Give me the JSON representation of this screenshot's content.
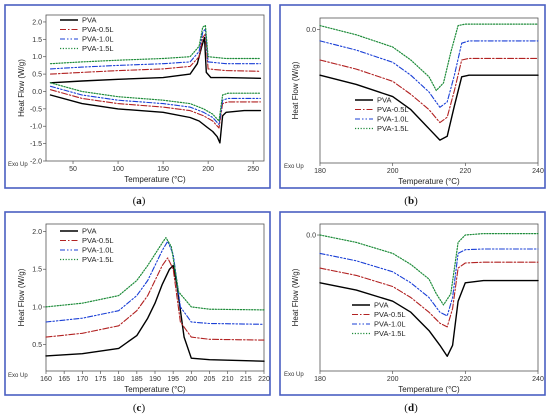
{
  "figure": {
    "colors": {
      "frame": "#4a5fc1",
      "PVA": "#000000",
      "PVA-0.5L": "#b22222",
      "PVA-1.0L": "#1a3fd6",
      "PVA-1.5L": "#1e8c3a"
    },
    "panels": [
      {
        "id": "a",
        "caption_open": "(",
        "caption_letter": "a",
        "caption_close": ")",
        "ylabel": "Heat Flow (W/g)",
        "xlabel": "Temperature (°C)",
        "exo_label": "Exo Up",
        "legend_position": "top-left",
        "legend": [
          "PVA",
          "PVA-0.5L",
          "PVA-1.0L",
          "PVA-1.5L"
        ]
      },
      {
        "id": "b",
        "caption_open": "(",
        "caption_letter": "b",
        "caption_close": ")",
        "ylabel": "Heat Flow (W/g)",
        "xlabel": "Temperature (°C)",
        "exo_label": "Exo Up",
        "legend_position": "bottom-center",
        "legend": [
          "PVA",
          "PVA-0.5L",
          "PVA-1.0L",
          "PVA-1.5L"
        ]
      },
      {
        "id": "c",
        "caption_open": "(",
        "caption_letter": "c",
        "caption_close": ")",
        "ylabel": "Heat Flow (W/g)",
        "xlabel": "Temperature (°C)",
        "exo_label": "Exo Up",
        "legend_position": "top-left",
        "legend": [
          "PVA",
          "PVA-0.5L",
          "PVA-1.0L",
          "PVA-1.5L"
        ]
      },
      {
        "id": "d",
        "caption_open": "(",
        "caption_letter": "d",
        "caption_close": ")",
        "ylabel": "Heat Flow (W/g)",
        "xlabel": "Temperature (°C)",
        "exo_label": "Exo Up",
        "legend_position": "bottom-center",
        "legend": [
          "PVA",
          "PVA-0.5L",
          "PVA-1.0L",
          "PVA-1.5L"
        ]
      }
    ]
  },
  "chart_data": [
    {
      "type": "line",
      "panel": "a",
      "xlabel": "Temperature (°C)",
      "ylabel": "Heat Flow (W/g)",
      "xlim": [
        20,
        262
      ],
      "ylim": [
        -2.0,
        2.2
      ],
      "xticks": [
        50,
        100,
        150,
        200,
        250
      ],
      "yticks": [
        -2.0,
        -1.5,
        -1.0,
        -0.5,
        0.0,
        0.5,
        1.0,
        1.5,
        2.0
      ],
      "grid": false,
      "series": [
        {
          "name": "PVA",
          "loop": "heating",
          "x": [
            25,
            60,
            100,
            150,
            180,
            190,
            195,
            200,
            205,
            210,
            213,
            216,
            220,
            240,
            258
          ],
          "y": [
            -0.1,
            -0.35,
            -0.5,
            -0.6,
            -0.75,
            -0.85,
            -0.95,
            -1.05,
            -1.15,
            -1.3,
            -1.48,
            -0.7,
            -0.6,
            -0.55,
            -0.55
          ]
        },
        {
          "name": "PVA",
          "loop": "cooling",
          "x": [
            25,
            60,
            100,
            150,
            180,
            188,
            193,
            196,
            198,
            203,
            220,
            258
          ],
          "y": [
            0.25,
            0.3,
            0.35,
            0.4,
            0.5,
            0.8,
            1.3,
            1.55,
            0.55,
            0.4,
            0.4,
            0.38
          ]
        },
        {
          "name": "PVA-0.5L",
          "loop": "heating",
          "x": [
            25,
            60,
            100,
            150,
            180,
            195,
            205,
            212,
            216,
            222,
            258
          ],
          "y": [
            0.05,
            -0.2,
            -0.35,
            -0.45,
            -0.55,
            -0.7,
            -0.85,
            -1.05,
            -0.35,
            -0.3,
            -0.3
          ]
        },
        {
          "name": "PVA-0.5L",
          "loop": "cooling",
          "x": [
            25,
            60,
            100,
            150,
            180,
            190,
            194,
            197,
            200,
            220,
            258
          ],
          "y": [
            0.5,
            0.55,
            0.6,
            0.65,
            0.72,
            1.0,
            1.55,
            1.65,
            0.65,
            0.6,
            0.58
          ]
        },
        {
          "name": "PVA-1.0L",
          "loop": "heating",
          "x": [
            25,
            60,
            100,
            150,
            180,
            195,
            205,
            212,
            216,
            222,
            258
          ],
          "y": [
            0.15,
            -0.1,
            -0.25,
            -0.35,
            -0.45,
            -0.6,
            -0.75,
            -0.95,
            -0.25,
            -0.2,
            -0.2
          ]
        },
        {
          "name": "PVA-1.0L",
          "loop": "cooling",
          "x": [
            25,
            60,
            100,
            150,
            180,
            190,
            194,
            197,
            200,
            220,
            258
          ],
          "y": [
            0.65,
            0.7,
            0.75,
            0.8,
            0.85,
            1.15,
            1.7,
            1.8,
            0.85,
            0.8,
            0.8
          ]
        },
        {
          "name": "PVA-1.5L",
          "loop": "heating",
          "x": [
            25,
            60,
            100,
            150,
            180,
            195,
            205,
            212,
            216,
            222,
            258
          ],
          "y": [
            0.25,
            0.0,
            -0.15,
            -0.25,
            -0.35,
            -0.5,
            -0.65,
            -0.85,
            -0.1,
            -0.05,
            -0.05
          ]
        },
        {
          "name": "PVA-1.5L",
          "loop": "cooling",
          "x": [
            25,
            60,
            100,
            150,
            180,
            190,
            194,
            197,
            200,
            220,
            258
          ],
          "y": [
            0.8,
            0.85,
            0.9,
            0.95,
            1.0,
            1.3,
            1.85,
            1.9,
            1.0,
            0.95,
            0.95
          ]
        }
      ]
    },
    {
      "type": "line",
      "panel": "b",
      "xlabel": "Temperature (°C)",
      "ylabel": "Heat Flow (W/g)",
      "xlim": [
        180,
        240
      ],
      "ylim": [
        -1.75,
        0.15
      ],
      "xticks": [
        180,
        200,
        220,
        240
      ],
      "yticks": [
        0
      ],
      "grid": false,
      "series": [
        {
          "name": "PVA",
          "x": [
            180,
            190,
            200,
            205,
            210,
            213,
            215,
            217,
            219,
            221,
            230,
            240
          ],
          "y": [
            -0.6,
            -0.72,
            -0.88,
            -1.05,
            -1.3,
            -1.45,
            -1.4,
            -1.0,
            -0.62,
            -0.6,
            -0.6,
            -0.6
          ]
        },
        {
          "name": "PVA-0.5L",
          "x": [
            180,
            190,
            200,
            205,
            210,
            213,
            215,
            217,
            219,
            221,
            230,
            240
          ],
          "y": [
            -0.4,
            -0.52,
            -0.68,
            -0.85,
            -1.05,
            -1.22,
            -1.15,
            -0.8,
            -0.4,
            -0.38,
            -0.38,
            -0.38
          ]
        },
        {
          "name": "PVA-1.0L",
          "x": [
            180,
            190,
            200,
            205,
            210,
            213,
            215,
            217,
            219,
            221,
            230,
            240
          ],
          "y": [
            -0.15,
            -0.27,
            -0.43,
            -0.6,
            -0.82,
            -1.02,
            -0.95,
            -0.6,
            -0.18,
            -0.15,
            -0.15,
            -0.15
          ]
        },
        {
          "name": "PVA-1.5L",
          "x": [
            180,
            190,
            200,
            205,
            210,
            212,
            214,
            216,
            218,
            220,
            230,
            240
          ],
          "y": [
            0.05,
            -0.07,
            -0.23,
            -0.4,
            -0.62,
            -0.8,
            -0.7,
            -0.3,
            0.05,
            0.07,
            0.07,
            0.07
          ]
        }
      ]
    },
    {
      "type": "line",
      "panel": "c",
      "xlabel": "Temperature (°C)",
      "ylabel": "Heat Flow (W/g)",
      "xlim": [
        160,
        220
      ],
      "ylim": [
        0.15,
        2.1
      ],
      "xticks": [
        160,
        165,
        170,
        175,
        180,
        185,
        190,
        195,
        200,
        205,
        210,
        215,
        220
      ],
      "yticks": [
        0.5,
        1.0,
        1.5,
        2.0
      ],
      "grid": false,
      "series": [
        {
          "name": "PVA",
          "x": [
            160,
            170,
            180,
            185,
            188,
            190,
            192,
            194,
            195,
            196,
            198,
            200,
            205,
            220
          ],
          "y": [
            0.35,
            0.38,
            0.45,
            0.62,
            0.85,
            1.05,
            1.3,
            1.5,
            1.55,
            1.3,
            0.6,
            0.32,
            0.3,
            0.28
          ]
        },
        {
          "name": "PVA-0.5L",
          "x": [
            160,
            170,
            180,
            185,
            188,
            190,
            192,
            193.5,
            195,
            197,
            200,
            205,
            220
          ],
          "y": [
            0.6,
            0.65,
            0.75,
            0.95,
            1.15,
            1.35,
            1.55,
            1.65,
            1.5,
            0.8,
            0.6,
            0.57,
            0.56
          ]
        },
        {
          "name": "PVA-1.0L",
          "x": [
            160,
            170,
            180,
            185,
            188,
            190,
            192,
            193.5,
            195,
            197,
            200,
            205,
            220
          ],
          "y": [
            0.8,
            0.85,
            0.95,
            1.15,
            1.35,
            1.55,
            1.75,
            1.87,
            1.7,
            1.0,
            0.8,
            0.78,
            0.77
          ]
        },
        {
          "name": "PVA-1.5L",
          "x": [
            160,
            170,
            180,
            185,
            188,
            190,
            192,
            193,
            194.5,
            196.5,
            200,
            205,
            220
          ],
          "y": [
            1.0,
            1.05,
            1.15,
            1.35,
            1.55,
            1.7,
            1.85,
            1.92,
            1.8,
            1.2,
            1.0,
            0.97,
            0.96
          ]
        }
      ]
    },
    {
      "type": "line",
      "panel": "d",
      "xlabel": "Temperature (°C)",
      "ylabel": "Heat Flow (W/g)",
      "xlim": [
        180,
        240
      ],
      "ylim": [
        -1.85,
        0.15
      ],
      "xticks": [
        180,
        200,
        220,
        240
      ],
      "yticks": [
        0
      ],
      "grid": false,
      "series": [
        {
          "name": "PVA",
          "x": [
            180,
            190,
            200,
            205,
            210,
            213,
            215,
            216.5,
            218,
            220,
            225,
            240
          ],
          "y": [
            -0.65,
            -0.75,
            -0.9,
            -1.05,
            -1.3,
            -1.5,
            -1.65,
            -1.5,
            -0.9,
            -0.65,
            -0.62,
            -0.62
          ]
        },
        {
          "name": "PVA-0.5L",
          "x": [
            180,
            190,
            200,
            205,
            210,
            213,
            215,
            216.5,
            218,
            220,
            225,
            240
          ],
          "y": [
            -0.45,
            -0.55,
            -0.7,
            -0.85,
            -1.05,
            -1.2,
            -1.25,
            -1.0,
            -0.45,
            -0.38,
            -0.37,
            -0.37
          ]
        },
        {
          "name": "PVA-1.0L",
          "x": [
            180,
            190,
            200,
            205,
            210,
            213,
            215,
            216.5,
            218,
            220,
            225,
            240
          ],
          "y": [
            -0.25,
            -0.35,
            -0.5,
            -0.65,
            -0.85,
            -1.05,
            -1.1,
            -0.85,
            -0.25,
            -0.2,
            -0.19,
            -0.19
          ]
        },
        {
          "name": "PVA-1.5L",
          "x": [
            180,
            190,
            200,
            205,
            210,
            212,
            214,
            216,
            218,
            220,
            225,
            240
          ],
          "y": [
            0.0,
            -0.1,
            -0.25,
            -0.4,
            -0.6,
            -0.8,
            -0.95,
            -0.8,
            -0.1,
            0.0,
            0.02,
            0.02
          ]
        }
      ]
    }
  ]
}
